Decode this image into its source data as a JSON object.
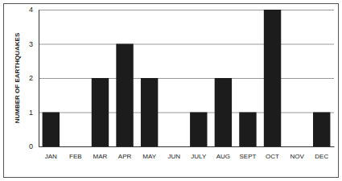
{
  "chart_data": {
    "type": "bar",
    "y_label": "NUMBER OF EARTHQUAKES",
    "categories": [
      "JAN",
      "FEB",
      "MAR",
      "APR",
      "MAY",
      "JUN",
      "JULY",
      "AUG",
      "SEPT",
      "OCT",
      "NOV",
      "DEC"
    ],
    "values": [
      1,
      0,
      2,
      3,
      2,
      0,
      1,
      2,
      1,
      4,
      0,
      1
    ],
    "color": "#1c1c1c",
    "ylim": [
      0,
      4
    ],
    "yticks": [
      0,
      1,
      2,
      3,
      4
    ],
    "grid": true
  }
}
